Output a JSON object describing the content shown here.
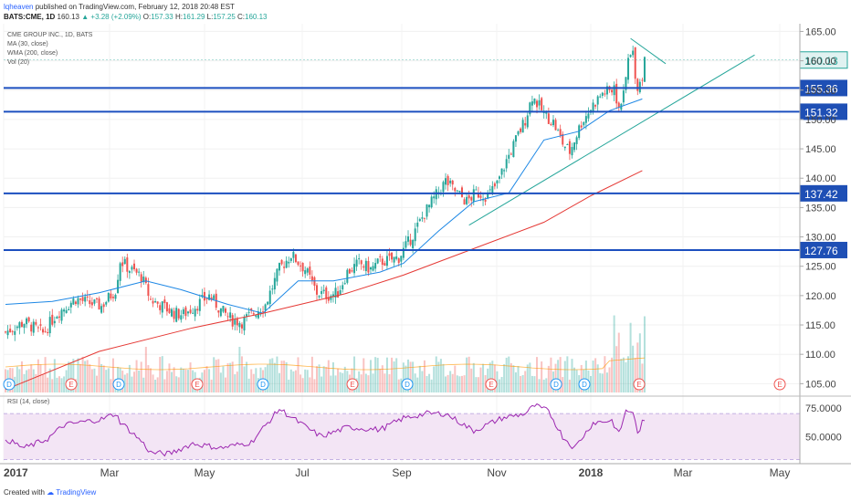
{
  "header": {
    "author": "lqheaven",
    "published_text": "published on TradingView.com, February 12, 2018 20:48 EST",
    "symbol": "BATS:CME, 1D",
    "last": "160.13",
    "change": "+3.28 (+2.09%)",
    "open_label": "O:",
    "open": "157.33",
    "high_label": "H:",
    "high": "161.29",
    "low_label": "L:",
    "low": "157.25",
    "close_label": "C:",
    "close": "160.13"
  },
  "legend": {
    "title": "CME GROUP INC., 1D, BATS",
    "ma": "MA (30, close)",
    "wma": "WMA (200, close)",
    "vol": "Vol (20)",
    "rsi": "RSI (14, close)"
  },
  "footer": {
    "created_with": "Created with",
    "brand": "TradingView"
  },
  "colors": {
    "up": "#26a69a",
    "down": "#ef5350",
    "ma": "#1e88e5",
    "wma": "#e53935",
    "hline": "#1c4fbf",
    "trend": "#26a69a",
    "rsi": "#9c27b0",
    "rsi_band": "#f3e5f5"
  },
  "chart_data": [
    {
      "type": "candlestick",
      "title": "CME GROUP INC., 1D, BATS",
      "x_ticks": [
        "2017",
        "Mar",
        "May",
        "Jul",
        "Sep",
        "Nov",
        "2018",
        "Mar",
        "May"
      ],
      "y_ticks": [
        "165.00",
        "160.00",
        "155.00",
        "150.00",
        "145.00",
        "140.00",
        "135.00",
        "130.00",
        "125.00",
        "120.00",
        "115.00",
        "110.00",
        "105.00"
      ],
      "ylim": [
        103.5,
        166
      ],
      "last_price": "160.13",
      "hlines": [
        "155.36",
        "151.32",
        "137.42",
        "127.76"
      ],
      "close_path": [
        [
          0,
          113.8
        ],
        [
          8,
          115.5
        ],
        [
          16,
          113.6
        ],
        [
          22,
          117
        ],
        [
          30,
          119.5
        ],
        [
          35,
          118.8
        ],
        [
          41,
          118.2
        ],
        [
          47,
          121
        ],
        [
          49,
          126
        ],
        [
          53,
          124.5
        ],
        [
          58,
          123.3
        ],
        [
          62,
          119.3
        ],
        [
          67,
          118.2
        ],
        [
          72,
          117
        ],
        [
          76,
          116.8
        ],
        [
          82,
          118.5
        ],
        [
          87,
          120
        ],
        [
          92,
          117.5
        ],
        [
          97,
          115.8
        ],
        [
          101,
          115.5
        ],
        [
          105,
          116.8
        ],
        [
          111,
          118.5
        ],
        [
          117,
          124.5
        ],
        [
          122,
          127
        ],
        [
          128,
          124.5
        ],
        [
          133,
          120.5
        ],
        [
          138,
          120
        ],
        [
          142,
          120.5
        ],
        [
          146,
          124
        ],
        [
          151,
          125.5
        ],
        [
          156,
          124.5
        ],
        [
          160,
          125.8
        ],
        [
          164,
          126
        ],
        [
          168,
          126.5
        ],
        [
          172,
          129
        ],
        [
          175,
          131
        ],
        [
          179,
          134
        ],
        [
          183,
          136.5
        ],
        [
          188,
          139.5
        ],
        [
          191,
          138.2
        ],
        [
          197,
          136
        ],
        [
          201,
          137.5
        ],
        [
          206,
          137
        ],
        [
          210,
          139
        ],
        [
          214,
          143
        ],
        [
          218,
          146.5
        ],
        [
          222,
          150
        ],
        [
          225,
          154
        ],
        [
          230,
          151
        ],
        [
          234,
          149.5
        ],
        [
          238,
          146
        ],
        [
          241,
          144.5
        ],
        [
          246,
          149.5
        ],
        [
          251,
          152.5
        ],
        [
          255,
          154.5
        ],
        [
          260,
          155
        ],
        [
          262,
          152
        ],
        [
          264,
          154
        ],
        [
          266,
          160
        ],
        [
          268,
          161.5
        ],
        [
          269,
          158
        ],
        [
          270,
          155.5
        ],
        [
          272,
          157.3
        ],
        [
          273,
          160.13
        ]
      ],
      "ohlc_note": "273 daily candles from Jan 2017 to Feb 12 2018 (x = trading day index)",
      "ma30": [
        [
          0,
          118.5
        ],
        [
          20,
          119
        ],
        [
          40,
          120.5
        ],
        [
          60,
          122.5
        ],
        [
          75,
          121
        ],
        [
          95,
          118.5
        ],
        [
          110,
          117
        ],
        [
          125,
          122.5
        ],
        [
          140,
          122.5
        ],
        [
          160,
          124
        ],
        [
          170,
          125.5
        ],
        [
          185,
          131
        ],
        [
          200,
          136
        ],
        [
          215,
          137.5
        ],
        [
          230,
          146.5
        ],
        [
          245,
          148
        ],
        [
          258,
          151.5
        ],
        [
          272,
          153.5
        ]
      ],
      "wma200": [
        [
          0,
          104
        ],
        [
          40,
          110.5
        ],
        [
          80,
          114.5
        ],
        [
          110,
          117
        ],
        [
          145,
          120.3
        ],
        [
          170,
          123.5
        ],
        [
          200,
          128
        ],
        [
          230,
          132.5
        ],
        [
          250,
          137
        ],
        [
          272,
          141.3
        ]
      ],
      "trendlines": [
        {
          "from": [
            198,
            132
          ],
          "to": [
            320,
            161
          ]
        },
        {
          "from": [
            267,
            163.8
          ],
          "to": [
            282,
            159.5
          ]
        }
      ]
    },
    {
      "type": "bar",
      "title": "Vol (20)",
      "note": "daily volume bars with 20-day MA, bars coloured by candle direction"
    },
    {
      "type": "line",
      "title": "RSI (14, close)",
      "y_ticks": [
        "75.0000",
        "50.0000"
      ],
      "ylim": [
        28,
        82
      ],
      "band": [
        30,
        70
      ],
      "values_path": [
        [
          0,
          48
        ],
        [
          8,
          40
        ],
        [
          18,
          48
        ],
        [
          25,
          60
        ],
        [
          34,
          63
        ],
        [
          41,
          65
        ],
        [
          47,
          70
        ],
        [
          49,
          63
        ],
        [
          58,
          46
        ],
        [
          62,
          36
        ],
        [
          70,
          35
        ],
        [
          80,
          44
        ],
        [
          92,
          40
        ],
        [
          105,
          45
        ],
        [
          117,
          74
        ],
        [
          122,
          67
        ],
        [
          130,
          56
        ],
        [
          135,
          50
        ],
        [
          146,
          58
        ],
        [
          160,
          56
        ],
        [
          170,
          66
        ],
        [
          180,
          70
        ],
        [
          188,
          70
        ],
        [
          200,
          55
        ],
        [
          212,
          66
        ],
        [
          222,
          70
        ],
        [
          226,
          77
        ],
        [
          232,
          72
        ],
        [
          238,
          50
        ],
        [
          243,
          40
        ],
        [
          251,
          62
        ],
        [
          259,
          64
        ],
        [
          262,
          52
        ],
        [
          265,
          72
        ],
        [
          268,
          72
        ],
        [
          270,
          52
        ],
        [
          272,
          62
        ]
      ]
    }
  ]
}
